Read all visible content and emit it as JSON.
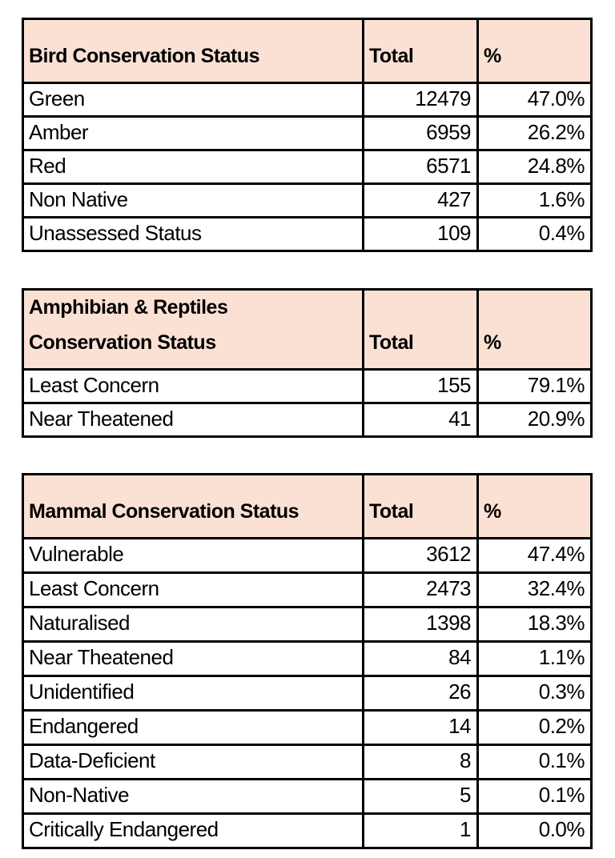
{
  "style": {
    "header_fill": "#FBE1D4",
    "border_color": "#000000",
    "text_color": "#000000",
    "page_background": "#ffffff"
  },
  "chart_data": [
    {
      "type": "table",
      "title": "Bird Conservation Status",
      "columns": [
        "Bird Conservation Status",
        "Total",
        "%"
      ],
      "rows": [
        [
          "Green",
          "12479",
          "47.0%"
        ],
        [
          "Amber",
          "6959",
          "26.2%"
        ],
        [
          "Red",
          "6571",
          "24.8%"
        ],
        [
          "Non Native",
          "427",
          "1.6%"
        ],
        [
          "Unassessed Status",
          "109",
          "0.4%"
        ]
      ]
    },
    {
      "type": "table",
      "title": "Amphibian & Reptiles Conservation Status",
      "columns": [
        "Amphibian & Reptiles\nConservation Status",
        "Total",
        "%"
      ],
      "rows": [
        [
          "Least Concern",
          "155",
          "79.1%"
        ],
        [
          "Near Theatened",
          "41",
          "20.9%"
        ]
      ]
    },
    {
      "type": "table",
      "title": "Mammal Conservation Status",
      "columns": [
        "Mammal Conservation Status",
        "Total",
        "%"
      ],
      "rows": [
        [
          "Vulnerable",
          "3612",
          "47.4%"
        ],
        [
          "Least Concern",
          "2473",
          "32.4%"
        ],
        [
          "Naturalised",
          "1398",
          "18.3%"
        ],
        [
          "Near Theatened",
          "84",
          "1.1%"
        ],
        [
          "Unidentified",
          "26",
          "0.3%"
        ],
        [
          "Endangered",
          "14",
          "0.2%"
        ],
        [
          "Data-Deficient",
          "8",
          "0.1%"
        ],
        [
          "Non-Native",
          "5",
          "0.1%"
        ],
        [
          "Critically Endangered",
          "1",
          "0.0%"
        ]
      ]
    }
  ]
}
